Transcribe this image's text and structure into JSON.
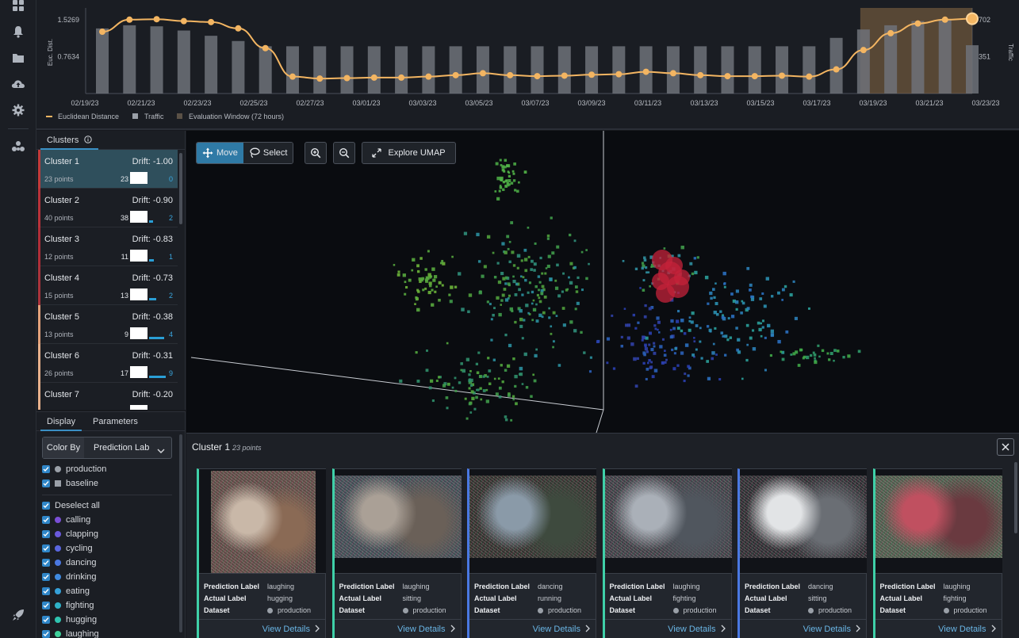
{
  "nav": {
    "icons": [
      "grid-icon",
      "bell-icon",
      "folder-icon",
      "cloud-upload-icon",
      "gear-icon",
      "cluster-icon",
      "rocket-icon"
    ]
  },
  "timeline": {
    "y_left_label": "Euc. Dist.",
    "y_right_label": "Traffic",
    "y_left_ticks": [
      "1.5269",
      "0.7634"
    ],
    "y_right_ticks": [
      "702",
      "351"
    ],
    "x_ticks": [
      "02/19/23",
      "02/21/23",
      "02/23/23",
      "02/25/23",
      "02/27/23",
      "03/01/23",
      "03/03/23",
      "03/05/23",
      "03/07/23",
      "03/09/23",
      "03/11/23",
      "03/13/23",
      "03/15/23",
      "03/17/23",
      "03/19/23",
      "03/21/23",
      "03/23/23"
    ],
    "legend": [
      "Euclidean Distance",
      "Traffic",
      "Evaluation Window (72 hours)"
    ],
    "colors": {
      "line": "#f3b562",
      "bar": "#6e7279",
      "window": "#8a6a45"
    }
  },
  "chart_data": {
    "type": "line",
    "x_range": [
      "02/19/23",
      "03/23/23"
    ],
    "ylim_left": [
      0,
      1.5269
    ],
    "ylim_right": [
      0,
      702
    ],
    "series": [
      {
        "name": "Euclidean Distance",
        "axis": "left",
        "values": [
          1.28,
          1.53,
          1.54,
          1.5,
          1.48,
          1.35,
          0.94,
          0.35,
          0.31,
          0.32,
          0.33,
          0.33,
          0.35,
          0.38,
          0.42,
          0.38,
          0.36,
          0.37,
          0.39,
          0.4,
          0.45,
          0.42,
          0.38,
          0.36,
          0.36,
          0.37,
          0.35,
          0.5,
          0.9,
          1.25,
          1.45,
          1.53,
          1.55
        ]
      },
      {
        "name": "Traffic",
        "axis": "right",
        "values": [
          620,
          650,
          640,
          600,
          550,
          500,
          450,
          450,
          450,
          450,
          450,
          450,
          450,
          450,
          450,
          450,
          450,
          450,
          450,
          450,
          450,
          450,
          450,
          450,
          450,
          450,
          450,
          530,
          610,
          650,
          690,
          700,
          460
        ]
      }
    ],
    "evaluation_window": [
      "03/20/23",
      "03/23/23"
    ]
  },
  "clusters_panel": {
    "tab_label": "Clusters",
    "items": [
      {
        "name": "Cluster 1",
        "drift": "Drift: -1.00",
        "points": "23 points",
        "n1": "23",
        "n2": "0",
        "frac": 0.0,
        "color": "#c23a3a"
      },
      {
        "name": "Cluster 2",
        "drift": "Drift: -0.90",
        "points": "40 points",
        "n1": "38",
        "n2": "2",
        "frac": 0.08,
        "color": "#b8323a"
      },
      {
        "name": "Cluster 3",
        "drift": "Drift: -0.83",
        "points": "12 points",
        "n1": "11",
        "n2": "1",
        "frac": 0.1,
        "color": "#b02e38"
      },
      {
        "name": "Cluster 4",
        "drift": "Drift: -0.73",
        "points": "15 points",
        "n1": "13",
        "n2": "2",
        "frac": 0.15,
        "color": "#a9333b"
      },
      {
        "name": "Cluster 5",
        "drift": "Drift: -0.38",
        "points": "13 points",
        "n1": "9",
        "n2": "4",
        "frac": 0.31,
        "color": "#e3a17a"
      },
      {
        "name": "Cluster 6",
        "drift": "Drift: -0.31",
        "points": "26 points",
        "n1": "17",
        "n2": "9",
        "frac": 0.35,
        "color": "#e8b08b"
      },
      {
        "name": "Cluster 7",
        "drift": "Drift: -0.20",
        "points": "",
        "n1": "",
        "n2": "",
        "frac": 0.4,
        "color": "#e8b08b"
      }
    ]
  },
  "display_panel": {
    "tabs": [
      "Display",
      "Parameters"
    ],
    "color_by_label": "Color By",
    "color_by_value": "Prediction Lab",
    "datasets": [
      {
        "label": "production",
        "color": "#9aa0a8"
      },
      {
        "label": "baseline",
        "color": "#9aa0a8"
      }
    ],
    "deselect_all": "Deselect all",
    "labels": [
      {
        "label": "calling",
        "color": "#7a4fd6"
      },
      {
        "label": "clapping",
        "color": "#6a59dc"
      },
      {
        "label": "cycling",
        "color": "#5a66e0"
      },
      {
        "label": "dancing",
        "color": "#4a78e2"
      },
      {
        "label": "drinking",
        "color": "#3f8ae0"
      },
      {
        "label": "eating",
        "color": "#35a0d8"
      },
      {
        "label": "fighting",
        "color": "#2fb2c8"
      },
      {
        "label": "hugging",
        "color": "#2fc4b0"
      },
      {
        "label": "laughing",
        "color": "#3fd09a"
      }
    ]
  },
  "umap": {
    "move_label": "Move",
    "select_label": "Select",
    "explore_label": "Explore UMAP"
  },
  "detail": {
    "title": "Cluster 1",
    "subtitle": "23 points",
    "keys": [
      "Prediction Label",
      "Actual Label",
      "Dataset"
    ],
    "view_details": "View Details",
    "cards": [
      {
        "pred": "laughing",
        "actual": "hugging",
        "dataset": "production",
        "accent": "#3fd0a8"
      },
      {
        "pred": "laughing",
        "actual": "sitting",
        "dataset": "production",
        "accent": "#3fd0a8"
      },
      {
        "pred": "dancing",
        "actual": "running",
        "dataset": "production",
        "accent": "#4a78e2"
      },
      {
        "pred": "laughing",
        "actual": "fighting",
        "dataset": "production",
        "accent": "#3fd0a8"
      },
      {
        "pred": "dancing",
        "actual": "sitting",
        "dataset": "production",
        "accent": "#4a78e2"
      },
      {
        "pred": "laughing",
        "actual": "fighting",
        "dataset": "production",
        "accent": "#3fd0a8"
      }
    ]
  }
}
